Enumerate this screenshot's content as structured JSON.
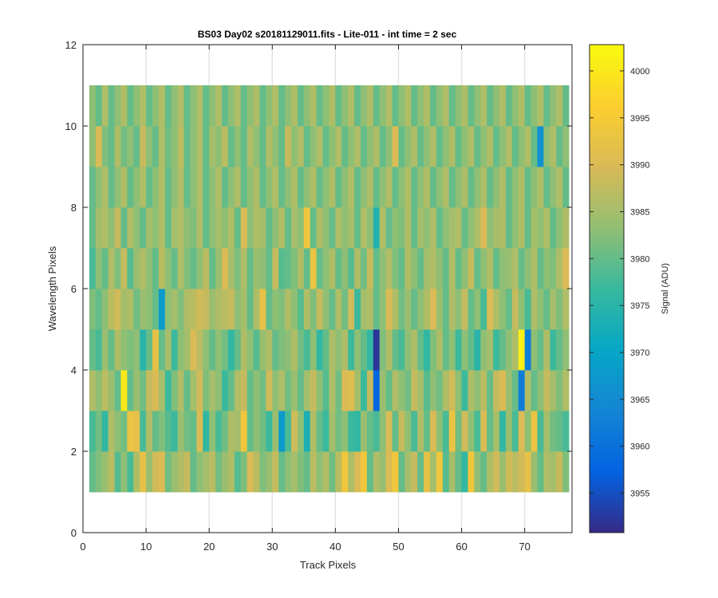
{
  "chart_data": {
    "type": "heatmap",
    "title": "BS03 Day02  s20181129011.fits - Lite-011 - int time = 2 sec",
    "xlabel": "Track Pixels",
    "ylabel": "Wavelength Pixels",
    "colorbar_label": "Signal (ADU)",
    "xlim": [
      0,
      77.5
    ],
    "ylim": [
      0,
      12
    ],
    "xticks": [
      0,
      10,
      20,
      30,
      40,
      50,
      60,
      70
    ],
    "yticks": [
      0,
      2,
      4,
      6,
      8,
      10,
      12
    ],
    "clim": [
      3950.8,
      4002.8
    ],
    "cticks": [
      3955,
      3960,
      3965,
      3970,
      3975,
      3980,
      3985,
      3990,
      3995,
      4000
    ],
    "grid": true,
    "colormap": "parula",
    "x_range": [
      1,
      76
    ],
    "y_rows": [
      1,
      2,
      3,
      4,
      5,
      6,
      7,
      8,
      9,
      10
    ],
    "values": [
      [
        3980,
        3982,
        3984,
        3987,
        3979,
        3983,
        3978,
        3986,
        3992,
        3984,
        3989,
        3990,
        3981,
        3984,
        3986,
        3988,
        3980,
        3983,
        3985,
        3987,
        3981,
        3984,
        3986,
        3979,
        3982,
        3990,
        3987,
        3982,
        3984,
        3988,
        3980,
        3983,
        3985,
        3982,
        3980,
        3987,
        3983,
        3986,
        3981,
        3987,
        3994,
        3986,
        3990,
        3994,
        3980,
        3986,
        3984,
        3990,
        3994,
        3980,
        3985,
        3988,
        3980,
        3992,
        3985,
        3994,
        3979,
        3985,
        3980,
        3976,
        3994,
        3983,
        3980,
        3986,
        3989,
        3984,
        3989,
        3987,
        3989,
        3992,
        3984,
        3980,
        3986,
        3985,
        3988,
        3982
      ],
      [
        3978,
        3981,
        3976,
        3986,
        3983,
        3981,
        3993,
        3992,
        3978,
        3986,
        3980,
        3982,
        3979,
        3977,
        3984,
        3981,
        3980,
        3990,
        3976,
        3983,
        3978,
        3981,
        3986,
        3985,
        3994,
        3980,
        3983,
        3981,
        3977,
        3984,
        3968,
        3978,
        3989,
        3983,
        3973,
        3986,
        3980,
        3977,
        3985,
        3981,
        3983,
        3977,
        3976,
        3984,
        3980,
        3978,
        3983,
        3990,
        3980,
        3988,
        3983,
        3978,
        3986,
        3980,
        3990,
        3983,
        3978,
        3993,
        3981,
        3989,
        3983,
        3978,
        3990,
        3980,
        3985,
        3976,
        3984,
        3978,
        3990,
        3983,
        3993,
        3978,
        3985,
        3981,
        3980,
        3978
      ],
      [
        3986,
        3983,
        3987,
        3984,
        3980,
        4000,
        3980,
        3984,
        3981,
        3988,
        3990,
        3985,
        3977,
        3982,
        3986,
        3980,
        3985,
        3989,
        3982,
        3985,
        3983,
        3977,
        3980,
        3986,
        3988,
        3980,
        3983,
        3981,
        3989,
        3983,
        3986,
        3981,
        3984,
        3980,
        3985,
        3988,
        3983,
        3979,
        3986,
        3981,
        3990,
        3991,
        3985,
        3977,
        3988,
        3958,
        3984,
        3980,
        3986,
        3983,
        3981,
        3988,
        3985,
        3979,
        3983,
        3981,
        3986,
        3989,
        3983,
        3977,
        3986,
        3983,
        3987,
        3980,
        3988,
        3990,
        3984,
        3980,
        3962,
        3986,
        3980,
        3983,
        3988,
        3985,
        3982,
        3986
      ],
      [
        3980,
        3978,
        3984,
        3980,
        3986,
        3983,
        3982,
        3983,
        3975,
        3980,
        3992,
        3980,
        3985,
        3977,
        3983,
        3985,
        3990,
        3987,
        3983,
        3980,
        3983,
        3981,
        3976,
        3980,
        3986,
        3983,
        3979,
        3984,
        3986,
        3980,
        3982,
        3983,
        3986,
        3981,
        3978,
        3983,
        3976,
        3980,
        3986,
        3983,
        3986,
        3977,
        3983,
        3980,
        3976,
        3952,
        3982,
        3986,
        3980,
        3978,
        3983,
        3986,
        3980,
        3976,
        3982,
        3986,
        3980,
        3983,
        3977,
        3983,
        3980,
        3975,
        3983,
        3985,
        3977,
        3980,
        3983,
        3986,
        4001,
        3962,
        3983,
        3980,
        3986,
        3977,
        3980,
        3983
      ],
      [
        3982,
        3980,
        3983,
        3987,
        3989,
        3985,
        3986,
        3981,
        3984,
        3983,
        3980,
        3968,
        3983,
        3985,
        3982,
        3986,
        3987,
        3989,
        3988,
        3984,
        3986,
        3987,
        3988,
        3983,
        3985,
        3980,
        3986,
        3992,
        3980,
        3983,
        3982,
        3986,
        3983,
        3979,
        3986,
        3982,
        3988,
        3983,
        3980,
        3986,
        3981,
        3989,
        3977,
        3985,
        3986,
        3980,
        3983,
        3990,
        3986,
        3981,
        3984,
        3980,
        3983,
        3986,
        3990,
        3984,
        3980,
        3986,
        3983,
        3988,
        3980,
        3983,
        3978,
        3990,
        3986,
        3983,
        3980,
        3988,
        3983,
        3978,
        3986,
        3983,
        3980,
        3985,
        3982,
        3986
      ],
      [
        3978,
        3983,
        3980,
        3986,
        3982,
        3988,
        3979,
        3984,
        3986,
        3983,
        3980,
        3987,
        3983,
        3980,
        3986,
        3982,
        3980,
        3983,
        3987,
        3980,
        3984,
        3990,
        3985,
        3982,
        3986,
        3980,
        3984,
        3983,
        3980,
        3988,
        3979,
        3980,
        3982,
        3986,
        3980,
        3993,
        3980,
        3983,
        3986,
        3980,
        3983,
        3979,
        3986,
        3981,
        3988,
        3980,
        3983,
        3986,
        3982,
        3980,
        3986,
        3983,
        3980,
        3985,
        3986,
        3983,
        3980,
        3986,
        3980,
        3983,
        3988,
        3980,
        3983,
        3986,
        3980,
        3983,
        3984,
        3986,
        3980,
        3983,
        3986,
        3980,
        3983,
        3982,
        3986,
        3990
      ],
      [
        3980,
        3985,
        3986,
        3983,
        3988,
        3980,
        3986,
        3983,
        3980,
        3985,
        3983,
        3986,
        3980,
        3985,
        3986,
        3983,
        3982,
        3986,
        3980,
        3983,
        3985,
        3983,
        3986,
        3980,
        3990,
        3983,
        3986,
        3985,
        3980,
        3983,
        3986,
        3980,
        3985,
        3983,
        3994,
        3980,
        3986,
        3983,
        3980,
        3986,
        3983,
        3985,
        3980,
        3986,
        3983,
        3974,
        3986,
        3980,
        3983,
        3982,
        3986,
        3980,
        3985,
        3983,
        3986,
        3980,
        3983,
        3985,
        3986,
        3980,
        3983,
        3986,
        3990,
        3983,
        3985,
        3986,
        3980,
        3983,
        3986,
        3980,
        3985,
        3983,
        3986,
        3980,
        3983,
        3986
      ],
      [
        3980,
        3983,
        3986,
        3980,
        3983,
        3986,
        3980,
        3983,
        3986,
        3980,
        3983,
        3986,
        3980,
        3983,
        3986,
        3980,
        3983,
        3986,
        3980,
        3983,
        3986,
        3980,
        3983,
        3986,
        3980,
        3983,
        3986,
        3980,
        3983,
        3986,
        3980,
        3983,
        3986,
        3980,
        3983,
        3986,
        3980,
        3983,
        3986,
        3980,
        3983,
        3986,
        3980,
        3983,
        3986,
        3980,
        3983,
        3986,
        3980,
        3983,
        3986,
        3980,
        3983,
        3986,
        3980,
        3983,
        3986,
        3980,
        3983,
        3986,
        3980,
        3983,
        3986,
        3980,
        3983,
        3986,
        3980,
        3983,
        3986,
        3980,
        3983,
        3986,
        3980,
        3983,
        3986,
        3980
      ],
      [
        3983,
        3990,
        3982,
        3980,
        3986,
        3981,
        3983,
        3980,
        3988,
        3983,
        3980,
        3986,
        3981,
        3983,
        3987,
        3980,
        3983,
        3986,
        3980,
        3985,
        3983,
        3987,
        3980,
        3983,
        3980,
        3986,
        3983,
        3980,
        3986,
        3983,
        3980,
        3988,
        3983,
        3986,
        3980,
        3983,
        3986,
        3980,
        3983,
        3986,
        3980,
        3983,
        3986,
        3980,
        3983,
        3986,
        3980,
        3983,
        3990,
        3980,
        3983,
        3986,
        3980,
        3983,
        3986,
        3980,
        3983,
        3986,
        3980,
        3983,
        3986,
        3980,
        3983,
        3986,
        3980,
        3983,
        3986,
        3980,
        3983,
        3986,
        3980,
        3966,
        3983,
        3986,
        3980,
        3983
      ],
      [
        3983,
        3980,
        3986,
        3980,
        3983,
        3986,
        3980,
        3983,
        3986,
        3980,
        3983,
        3986,
        3980,
        3983,
        3986,
        3980,
        3983,
        3986,
        3980,
        3983,
        3986,
        3980,
        3983,
        3986,
        3980,
        3983,
        3986,
        3980,
        3983,
        3986,
        3980,
        3983,
        3986,
        3980,
        3983,
        3986,
        3980,
        3983,
        3986,
        3980,
        3983,
        3986,
        3980,
        3983,
        3986,
        3980,
        3983,
        3986,
        3980,
        3983,
        3986,
        3980,
        3983,
        3986,
        3980,
        3983,
        3986,
        3980,
        3983,
        3986,
        3980,
        3983,
        3986,
        3980,
        3983,
        3986,
        3980,
        3983,
        3986,
        3980,
        3983,
        3986,
        3980,
        3983,
        3986,
        3980
      ]
    ]
  }
}
